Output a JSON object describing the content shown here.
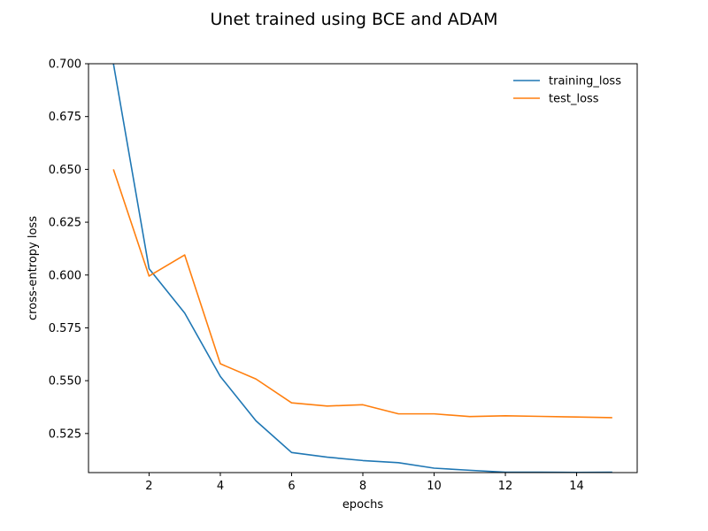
{
  "chart_data": {
    "type": "line",
    "title": "Unet trained using BCE and ADAM",
    "xlabel": "epochs",
    "ylabel": "cross-entropy loss",
    "xlim": [
      0.3,
      15.7
    ],
    "ylim": [
      0.5065,
      0.7
    ],
    "xticks": [
      2,
      4,
      6,
      8,
      10,
      12,
      14
    ],
    "yticks": [
      0.525,
      0.55,
      0.575,
      0.6,
      0.625,
      0.65,
      0.675,
      0.7
    ],
    "xtick_labels": [
      "2",
      "4",
      "6",
      "8",
      "10",
      "12",
      "14"
    ],
    "ytick_labels": [
      "0.525",
      "0.550",
      "0.575",
      "0.600",
      "0.625",
      "0.650",
      "0.675",
      "0.700"
    ],
    "x": [
      1,
      2,
      3,
      4,
      5,
      6,
      7,
      8,
      9,
      10,
      11,
      12,
      13,
      14,
      15
    ],
    "grid": false,
    "legend_position": "top-right",
    "series": [
      {
        "name": "training_loss",
        "color": "#1f77b4",
        "values": [
          0.7,
          0.603,
          0.582,
          0.552,
          0.531,
          0.516,
          0.5138,
          0.5122,
          0.5112,
          0.5086,
          0.5076,
          0.5067,
          0.5067,
          0.5066,
          0.5067
        ]
      },
      {
        "name": "test_loss",
        "color": "#ff7f0e",
        "values": [
          0.65,
          0.5995,
          0.6095,
          0.558,
          0.5508,
          0.5395,
          0.538,
          0.5386,
          0.5343,
          0.5343,
          0.533,
          0.5334,
          0.5331,
          0.5328,
          0.5325
        ]
      }
    ]
  }
}
